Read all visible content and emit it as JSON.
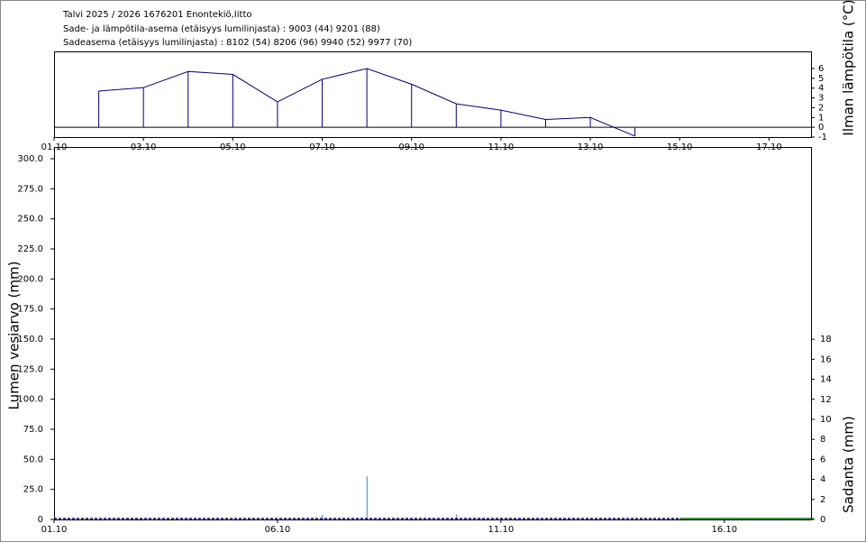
{
  "header": {
    "lines": [
      "Talvi 2025 / 2026 1676201 Enontekiö,Iitto",
      "Sade- ja lämpötila-asema (etäisyys lumilinjasta) :  9003 (44) 9201 (88)",
      "Sadeasema (etäisyys lumilinjasta) :  8102 (54) 8206 (96) 9940 (52) 9977 (70)"
    ]
  },
  "chart_data": [
    {
      "type": "line",
      "ylabel": "Ilman lämpötila (°C)",
      "drop_lines": true,
      "x": [
        "02.10",
        "03.10",
        "04.10",
        "05.10",
        "06.10",
        "07.10",
        "08.10",
        "09.10",
        "10.10",
        "11.10",
        "12.10",
        "13.10",
        "14.10"
      ],
      "series": [
        {
          "color": "#000080",
          "values": [
            3.7,
            4.05,
            5.7,
            5.4,
            2.6,
            4.9,
            6.0,
            4.4,
            2.4,
            1.75,
            0.8,
            1.0,
            -0.9
          ]
        }
      ],
      "xlim": [
        "01.10",
        "18.10"
      ],
      "xticks": [
        "01.10",
        "03.10",
        "05.10",
        "07.10",
        "09.10",
        "11.10",
        "13.10",
        "15.10",
        "17.10"
      ],
      "ylim": [
        -1,
        7.75
      ],
      "yticks": [
        -1,
        0,
        1,
        2,
        3,
        4,
        5,
        6
      ]
    },
    {
      "type": "combo",
      "ylabel": "Lumen vesiarvo (mm)",
      "y2label": "Sadanta (mm)",
      "xlim": [
        "01.10",
        "18.10"
      ],
      "xticks": [
        "01.10",
        "06.10",
        "11.10",
        "16.10"
      ],
      "ylim": [
        0,
        309.75
      ],
      "yticks": [
        0,
        {
          "value": 25,
          "label": "25.0"
        },
        {
          "value": 50,
          "label": "50.0"
        },
        {
          "value": 75,
          "label": "75.0"
        },
        {
          "value": 100,
          "label": "100.0"
        },
        {
          "value": 125,
          "label": "125.0"
        },
        {
          "value": 150,
          "label": "150.0"
        },
        {
          "value": 175,
          "label": "175.0"
        },
        {
          "value": 200,
          "label": "200.0"
        },
        {
          "value": 225,
          "label": "225.0"
        },
        {
          "value": 250,
          "label": "250.0"
        },
        {
          "value": 275,
          "label": "275.0"
        },
        {
          "value": 300,
          "label": "300.0"
        }
      ],
      "y2lim": [
        0,
        37.2
      ],
      "y2ticks": [
        0,
        2,
        4,
        6,
        8,
        10,
        12,
        14,
        16,
        18
      ],
      "series": [
        {
          "type": "bar",
          "axis": "y2",
          "color": "#6fa8dc",
          "x": [
            "07.10",
            "08.10",
            "10.10"
          ],
          "values": [
            0.45,
            4.3,
            0.5
          ]
        },
        {
          "type": "line",
          "dashed": true,
          "color": "#000080",
          "x": [
            "01.10",
            "15.10"
          ],
          "values": [
            0,
            0
          ]
        },
        {
          "type": "line",
          "color": "#007000",
          "x": [
            "15.10",
            "18.10"
          ],
          "values": [
            0,
            0
          ]
        }
      ]
    }
  ]
}
